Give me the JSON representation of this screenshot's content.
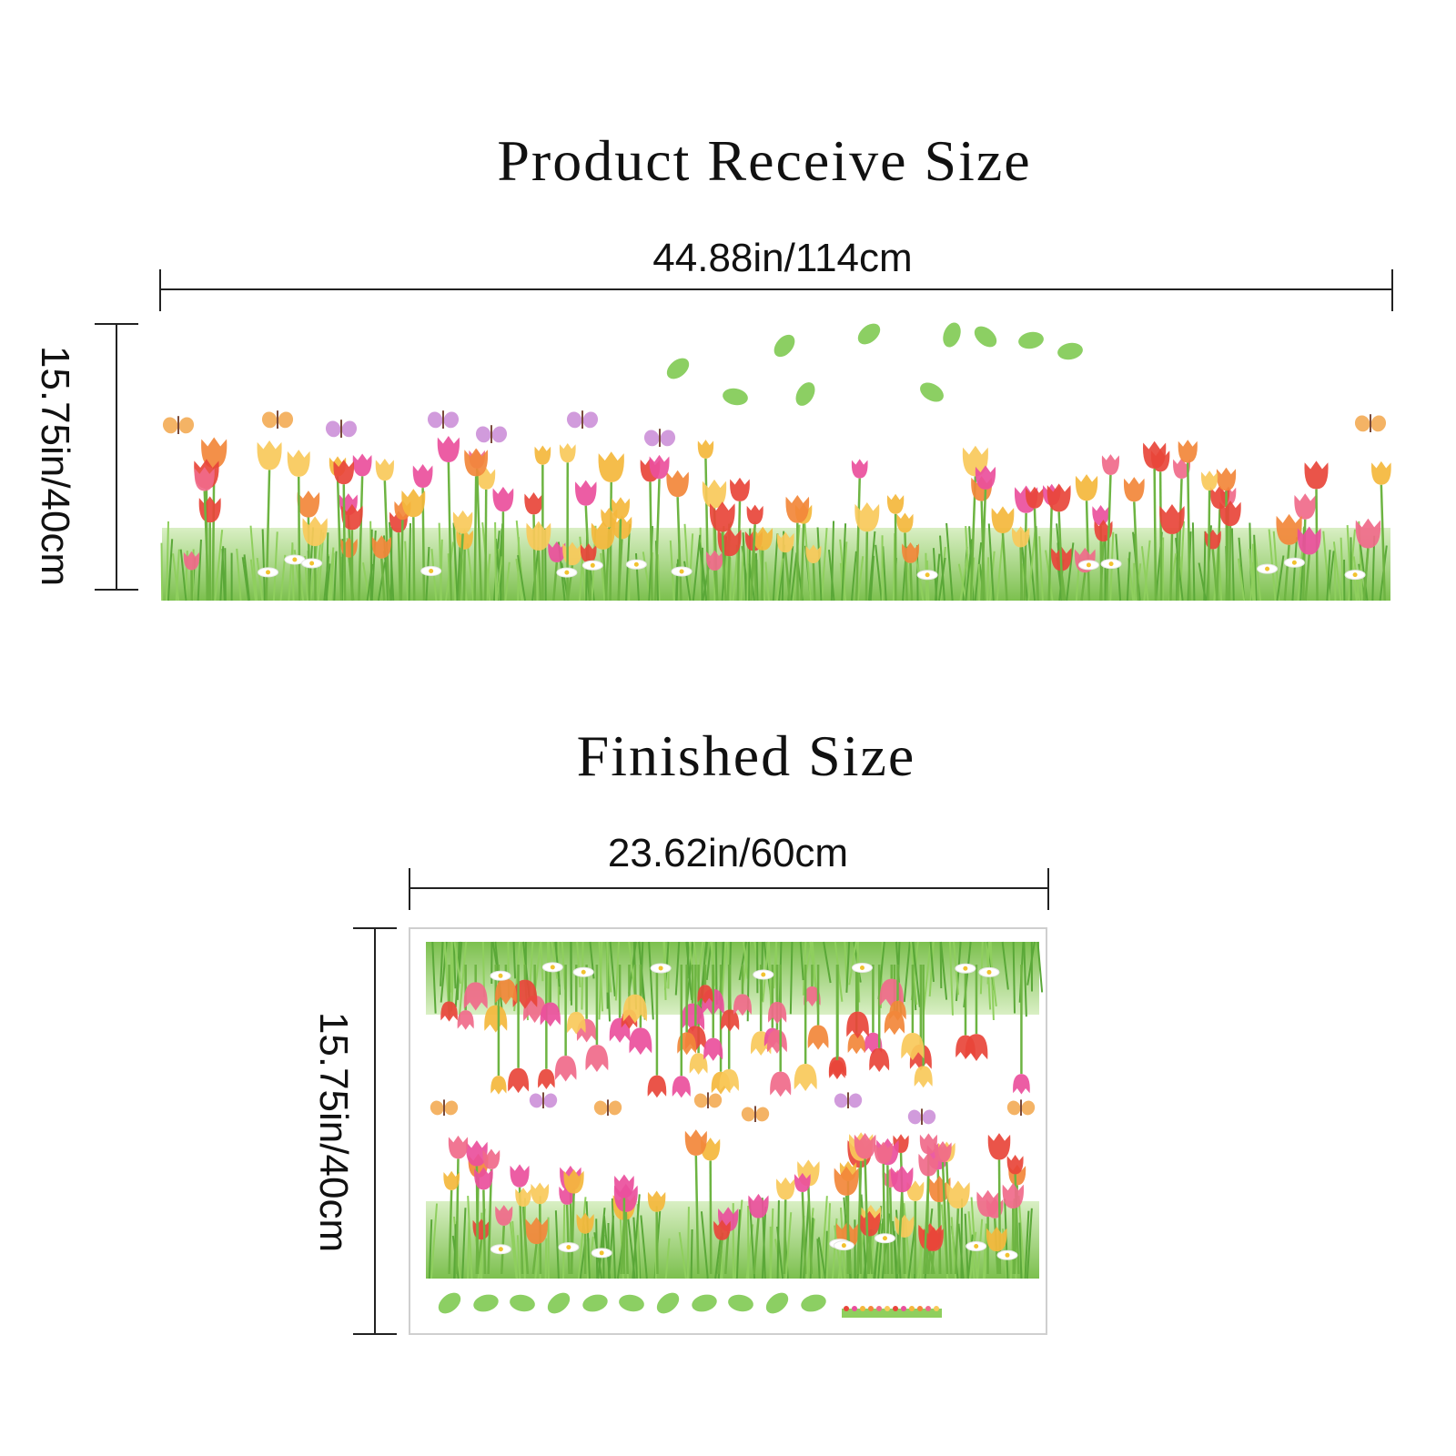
{
  "sections": [
    {
      "title": "Product Receive Size",
      "width": "44.88in/114cm",
      "height": "15.75in/40cm"
    },
    {
      "title": "Finished Size",
      "width": "23.62in/60cm",
      "height": "15.75in/40cm"
    }
  ]
}
